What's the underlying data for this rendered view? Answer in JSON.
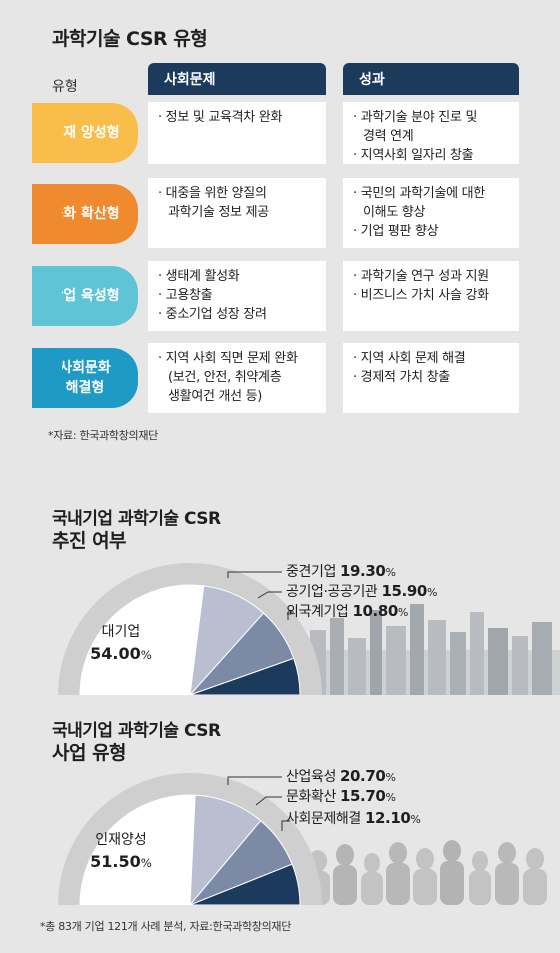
{
  "title": "과학기술 CSR 유형",
  "table": {
    "type_header": "유형",
    "col_social": "사회문제",
    "col_result": "성과",
    "rows": [
      {
        "type": "인재 양성형",
        "color": "#f9be4a",
        "social": [
          "정보 및 교육격차 완화"
        ],
        "result": [
          "과학기술 분야 진로 및\n경력 연계",
          "지역사회 일자리 창출"
        ]
      },
      {
        "type": "문화 확산형",
        "color": "#ef8a2e",
        "social": [
          "대중을 위한 양질의\n과학기술 정보 제공"
        ],
        "result": [
          "국민의 과학기술에 대한\n이해도 향상",
          "기업 평판 향상"
        ]
      },
      {
        "type": "산업 육성형",
        "color": "#5fc4d6",
        "social": [
          "생태계 활성화",
          "고용창출",
          "중소기업 성장 장려"
        ],
        "result": [
          "과학기술 연구 성과 지원",
          "비즈니스 가치 사슬 강화"
        ]
      },
      {
        "type": "사회문화\n해결형",
        "color": "#1f9ac6",
        "social": [
          "지역 사회 직면 문제 완화\n(보건, 안전, 취약계층\n생활여건 개선 등)"
        ],
        "result": [
          "지역 사회 문제 해결",
          "경제적 가치 창출"
        ]
      }
    ],
    "source": "*자료: 한국과학창의재단"
  },
  "chart1": {
    "title_line1": "국내기업 과학기술 CSR",
    "title_line2": "추진 여부"
  },
  "chart2": {
    "title_line1": "국내기업 과학기술 CSR",
    "title_line2": "사업 유형"
  },
  "chart_data": [
    {
      "type": "pie",
      "title": "국내기업 과학기술 CSR 추진 여부",
      "categories": [
        "대기업",
        "중견기업",
        "공기업·공공기관",
        "외국계기업"
      ],
      "values": [
        54.0,
        19.3,
        15.9,
        10.8
      ],
      "labels": [
        "54.00",
        "19.30",
        "15.90",
        "10.80"
      ],
      "unit": "%",
      "colors": [
        "#ffffff",
        "#b9bed0",
        "#7d8aa5",
        "#1b3a5c"
      ]
    },
    {
      "type": "pie",
      "title": "국내기업 과학기술 CSR 사업 유형",
      "categories": [
        "인재양성",
        "산업육성",
        "문화확산",
        "사회문제해결"
      ],
      "values": [
        51.5,
        20.7,
        15.7,
        12.1
      ],
      "labels": [
        "51.50",
        "20.70",
        "15.70",
        "12.10"
      ],
      "unit": "%",
      "colors": [
        "#ffffff",
        "#b9bed0",
        "#7d8aa5",
        "#1b3a5c"
      ]
    }
  ],
  "footnote": "*총 83개 기업 121개 사례 분석, 자료:한국과학창의재단"
}
